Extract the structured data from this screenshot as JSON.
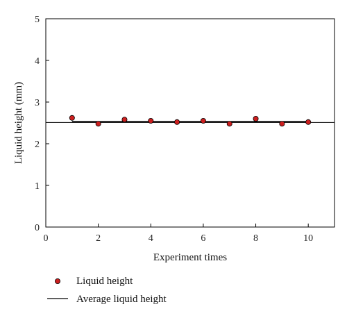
{
  "chart_data": {
    "type": "scatter",
    "xlabel": "Experiment times",
    "ylabel": "Liquid height (mm)",
    "xlim": [
      0,
      11
    ],
    "ylim": [
      0,
      5
    ],
    "x_ticks": [
      0,
      2,
      4,
      6,
      8,
      10
    ],
    "y_ticks": [
      0,
      1,
      2,
      3,
      4,
      5
    ],
    "grid": false,
    "legend_position": "below",
    "series": [
      {
        "name": "Liquid height",
        "kind": "scatter",
        "color": "#cc1f1f",
        "x": [
          1,
          2,
          3,
          4,
          5,
          6,
          7,
          8,
          9,
          10
        ],
        "y": [
          2.62,
          2.48,
          2.58,
          2.55,
          2.52,
          2.55,
          2.48,
          2.6,
          2.48,
          2.52
        ]
      },
      {
        "name": "Average liquid height",
        "kind": "line",
        "color": "#000000",
        "x": [
          1,
          10
        ],
        "y": [
          2.53,
          2.53
        ]
      }
    ],
    "reference_line": {
      "y": 2.51,
      "color": "#000000"
    }
  }
}
